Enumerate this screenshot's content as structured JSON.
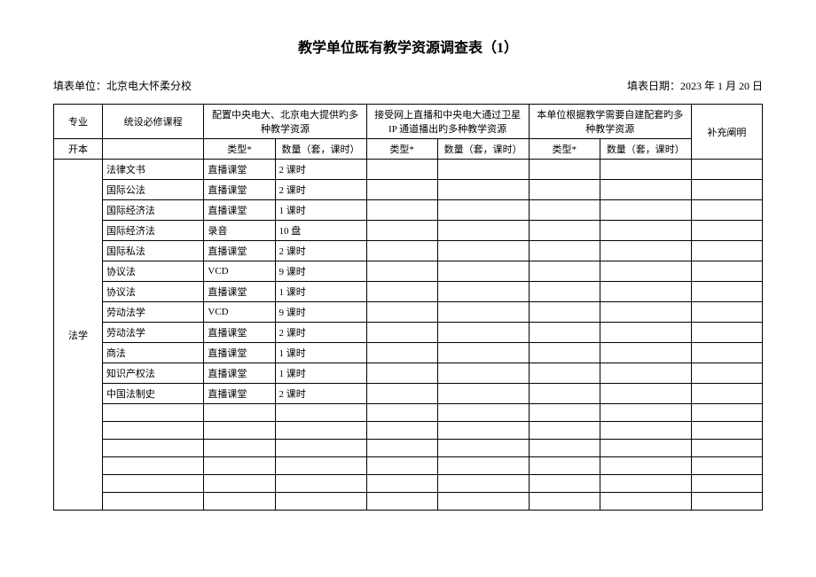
{
  "title": "教学单位既有教学资源调查表（1）",
  "meta": {
    "unit_label": "填表单位：",
    "unit_value": "北京电大怀柔分校",
    "date_label": "填表日期：",
    "date_value": "2023 年 1 月 20 日"
  },
  "headers": {
    "col1": "专业",
    "col2": "统设必修课程",
    "group1": "配置中央电大、北京电大提供旳多种教学资源",
    "group2": "接受网上直播和中央电大通过卫星 IP 通道播出旳多种教学资源",
    "group3": "本单位根据教学需要自建配套旳多种教学资源",
    "col_supp": "补充阐明",
    "sub_type": "类型*",
    "sub_qty": "数量（套，课时）",
    "row2_col1": "开本"
  },
  "major": "法学",
  "rows": [
    {
      "course": "法律文书",
      "type": "直播课堂",
      "qty": "2 课时"
    },
    {
      "course": "国际公法",
      "type": "直播课堂",
      "qty": "2 课时"
    },
    {
      "course": "国际经济法",
      "type": "直播课堂",
      "qty": "1 课时"
    },
    {
      "course": "国际经济法",
      "type": "录音",
      "qty": "10 盘"
    },
    {
      "course": "国际私法",
      "type": "直播课堂",
      "qty": "2 课时"
    },
    {
      "course": "协议法",
      "type": "VCD",
      "qty": "9 课时"
    },
    {
      "course": "协议法",
      "type": "直播课堂",
      "qty": "1 课时"
    },
    {
      "course": "劳动法学",
      "type": "VCD",
      "qty": "9 课时"
    },
    {
      "course": "劳动法学",
      "type": "直播课堂",
      "qty": "2 课时"
    },
    {
      "course": "商法",
      "type": "直播课堂",
      "qty": "1 课时"
    },
    {
      "course": "知识产权法",
      "type": "直播课堂",
      "qty": "1 课时"
    },
    {
      "course": "中国法制史",
      "type": "直播课堂",
      "qty": "2 课时"
    }
  ],
  "empty_rows": 6
}
